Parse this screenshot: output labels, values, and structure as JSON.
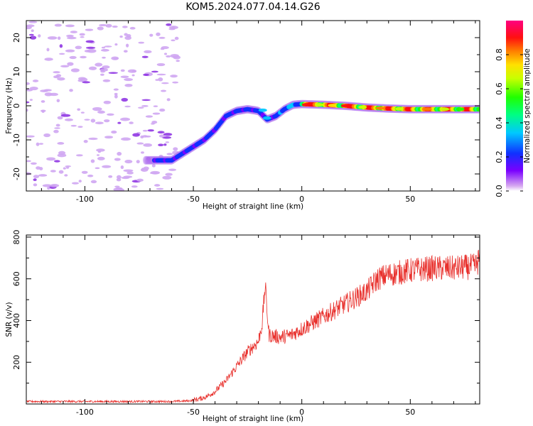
{
  "title": "KOM5.2024.077.04.14.G26",
  "chart_data": [
    {
      "type": "heatmap",
      "title": "KOM5.2024.077.04.14.G26",
      "xlabel": "Height of straight line (km)",
      "ylabel": "Frequency (Hz)",
      "xlim": [
        -127,
        82
      ],
      "ylim": [
        -25,
        25
      ],
      "xticks": [
        -100,
        -50,
        0,
        50
      ],
      "yticks": [
        -20,
        -10,
        0,
        10,
        20
      ],
      "colorbar": {
        "label": "Normalized spectral amplitude",
        "range": [
          0.0,
          1.0
        ],
        "ticks": [
          "0.0",
          "0.2",
          "0.4",
          "0.6",
          "0.8"
        ],
        "colormap": "gist_rainbow-like (purple→blue→cyan→green→yellow→orange→red→pink)"
      },
      "ridge": {
        "description": "Doppler frequency ridge",
        "x": [
          -70,
          -60,
          -55,
          -50,
          -45,
          -40,
          -35,
          -30,
          -25,
          -20,
          -16,
          -12,
          -8,
          -4,
          0,
          10,
          20,
          30,
          40,
          50,
          60,
          70,
          82
        ],
        "y": [
          -16,
          -16,
          -14,
          -12,
          -10,
          -7,
          -3,
          -1.5,
          -1,
          -1.5,
          -4,
          -3,
          -1,
          0.3,
          0.5,
          0.3,
          0,
          -0.5,
          -0.8,
          -1,
          -1,
          -1,
          -1
        ],
        "peak_amplitude_x_range": [
          0,
          82
        ]
      },
      "noise_region_x": [
        -127,
        -57
      ]
    },
    {
      "type": "line",
      "xlabel": "Height of straight line (km)",
      "ylabel": "SNR (v/v)",
      "xlim": [
        -127,
        82
      ],
      "ylim": [
        0,
        810
      ],
      "xticks": [
        -100,
        -50,
        0,
        50
      ],
      "yticks": [
        200,
        400,
        600,
        800
      ],
      "color": "#e8302c",
      "series_envelope": {
        "x": [
          -127,
          -60,
          -52,
          -47,
          -44,
          -40,
          -35,
          -30,
          -25,
          -20,
          -17,
          -15,
          -10,
          -5,
          0,
          5,
          10,
          15,
          20,
          30,
          35,
          40,
          50,
          60,
          70,
          80,
          82
        ],
        "y": [
          12,
          12,
          15,
          25,
          35,
          60,
          110,
          180,
          250,
          300,
          450,
          330,
          320,
          330,
          360,
          390,
          420,
          450,
          480,
          540,
          600,
          620,
          640,
          650,
          650,
          660,
          700
        ]
      }
    }
  ]
}
